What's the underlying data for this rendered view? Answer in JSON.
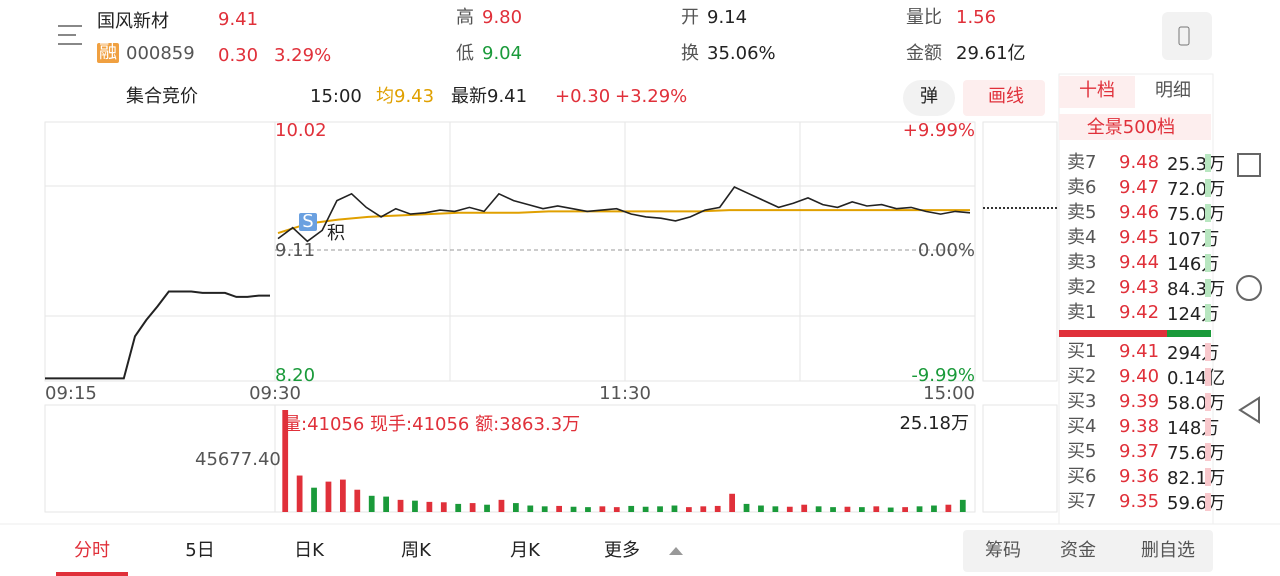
{
  "header": {
    "name": "国风新材",
    "price": "9.41",
    "badge": "融",
    "code": "000859",
    "change": "0.30",
    "change_pct": "3.29%",
    "stats": [
      {
        "label": "高",
        "value": "9.80"
      },
      {
        "label": "低",
        "value": "9.04"
      },
      {
        "label": "开",
        "value": "9.14"
      },
      {
        "label": "换",
        "value": "35.06%"
      },
      {
        "label": "量比",
        "value": "1.56"
      },
      {
        "label": "金额",
        "value": "29.61亿"
      }
    ]
  },
  "info_bar": {
    "mode": "集合竞价",
    "time": "15:00",
    "avg": "均9.43",
    "latest": "最新9.41",
    "change": "+0.30",
    "change_pct": "+3.29%",
    "button_pop": "弹",
    "button_draw": "画线"
  },
  "side_panel": {
    "tabs": [
      "十档",
      "明细"
    ],
    "subtab": "全景500档",
    "sell": [
      {
        "label": "卖7",
        "price": "9.48",
        "volume": "25.3万"
      },
      {
        "label": "卖6",
        "price": "9.47",
        "volume": "72.0万"
      },
      {
        "label": "卖5",
        "price": "9.46",
        "volume": "75.0万"
      },
      {
        "label": "卖4",
        "price": "9.45",
        "volume": "107万"
      },
      {
        "label": "卖3",
        "price": "9.44",
        "volume": "146万"
      },
      {
        "label": "卖2",
        "price": "9.43",
        "volume": "84.3万"
      },
      {
        "label": "卖1",
        "price": "9.42",
        "volume": "124万"
      }
    ],
    "buy": [
      {
        "label": "买1",
        "price": "9.41",
        "volume": "294万"
      },
      {
        "label": "买2",
        "price": "9.40",
        "volume": "0.14亿"
      },
      {
        "label": "买3",
        "price": "9.39",
        "volume": "58.0万"
      },
      {
        "label": "买4",
        "price": "9.38",
        "volume": "148万"
      },
      {
        "label": "买5",
        "price": "9.37",
        "volume": "75.6万"
      },
      {
        "label": "买6",
        "price": "9.36",
        "volume": "82.1万"
      },
      {
        "label": "买7",
        "price": "9.35",
        "volume": "59.6万"
      }
    ]
  },
  "chart": {
    "price_scale": {
      "top": {
        "value": 10.02,
        "label": "10.02"
      },
      "mid": {
        "value": 9.11,
        "label": "9.11"
      },
      "bottom": {
        "value": 8.2,
        "label": "8.20"
      }
    },
    "pct_scale": [
      "+9.99%",
      "0.00%",
      "-9.99%"
    ],
    "times": [
      "09:15",
      "09:30",
      "11:30",
      "15:00"
    ],
    "marker_s": "S",
    "marker_ji": "积",
    "price_line": [
      9.22,
      9.3,
      9.2,
      9.28,
      9.5,
      9.55,
      9.45,
      9.38,
      9.44,
      9.4,
      9.41,
      9.43,
      9.42,
      9.45,
      9.42,
      9.55,
      9.5,
      9.47,
      9.44,
      9.46,
      9.44,
      9.42,
      9.43,
      9.44,
      9.4,
      9.38,
      9.37,
      9.35,
      9.38,
      9.43,
      9.45,
      9.6,
      9.55,
      9.5,
      9.45,
      9.48,
      9.52,
      9.47,
      9.45,
      9.49,
      9.46,
      9.47,
      9.44,
      9.45,
      9.42,
      9.4,
      9.42,
      9.41
    ],
    "avg_line": [
      9.26,
      9.33,
      9.36,
      9.38,
      9.39,
      9.4,
      9.41,
      9.41,
      9.41,
      9.42,
      9.42,
      9.42,
      9.42,
      9.42,
      9.42,
      9.43,
      9.43,
      9.43,
      9.43,
      9.43,
      9.43,
      9.43,
      9.43,
      9.43
    ],
    "auction_line": [
      8.19,
      8.19,
      8.19,
      8.19,
      8.19,
      8.19,
      8.19,
      8.19,
      8.5,
      8.62,
      8.72,
      8.83,
      8.83,
      8.83,
      8.82,
      8.82,
      8.82,
      8.79,
      8.79,
      8.8,
      8.8
    ],
    "volume_text": "量:41056  现手:41056  额:3863.3万",
    "volume_max": {
      "value": 251800,
      "label": "25.18万"
    },
    "auction_volume": "45677.40",
    "volumes": [
      251800,
      90000,
      60000,
      75000,
      80000,
      55000,
      40000,
      38000,
      30000,
      28000,
      25000,
      24000,
      20000,
      22000,
      18000,
      30000,
      22000,
      16000,
      14000,
      15000,
      13000,
      12000,
      14000,
      12000,
      15000,
      13000,
      14000,
      16000,
      12000,
      14000,
      15000,
      45000,
      20000,
      16000,
      14000,
      13000,
      18000,
      14000,
      12000,
      13000,
      12000,
      14000,
      11000,
      12000,
      14000,
      16000,
      18000,
      30000
    ]
  },
  "bottom_tabs": [
    "分时",
    "5日",
    "日K",
    "周K",
    "月K",
    "更多"
  ],
  "bottom_buttons": [
    "筹码",
    "资金",
    "删自选"
  ]
}
